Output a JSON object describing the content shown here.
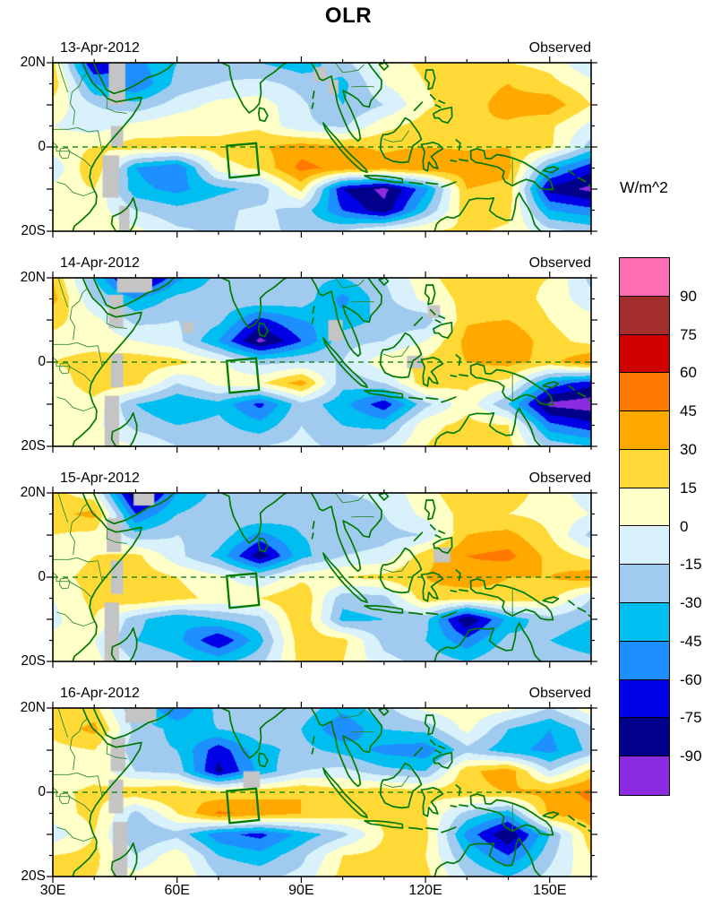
{
  "title": "OLR",
  "units_label": "W/m^2",
  "y_tick_labels": [
    "20N",
    "0",
    "20S"
  ],
  "x_tick_labels": [
    "30E",
    "60E",
    "90E",
    "120E",
    "150E"
  ],
  "colorbar": {
    "levels_top_to_bottom": [
      90,
      75,
      60,
      45,
      30,
      15,
      0,
      -15,
      -30,
      -45,
      -60,
      -75,
      -90
    ],
    "colors_top_to_bottom": [
      "#FF6EB4",
      "#A32C2C",
      "#D00000",
      "#FF7800",
      "#FFA800",
      "#FFD935",
      "#FFFFC8",
      "#D8F1FA",
      "#A0CBEF",
      "#00BEF0",
      "#1E8FFF",
      "#0000E6",
      "#00008B",
      "#8B2BE2"
    ]
  },
  "map_colors": {
    "coast_green": "#027A02",
    "border_green": "#2E8B2E",
    "missing_gray": "#C4C4C4",
    "box_green": "#017A01"
  },
  "chart_data": {
    "type": "heatmap",
    "title": "OLR",
    "units": "W/m^2",
    "x_range": [
      30,
      160
    ],
    "y_range": [
      -20,
      20
    ],
    "contour_interval": 15,
    "thresholds": [
      -90,
      -75,
      -60,
      -45,
      -30,
      -15,
      0,
      15,
      30,
      45,
      60,
      75,
      90
    ],
    "palette_low_to_high": [
      "#8B2BE2",
      "#00008B",
      "#0000E6",
      "#1E8FFF",
      "#00BEF0",
      "#A0CBEF",
      "#D8F1FA",
      "#FFFFC8",
      "#FFD935",
      "#FFA800",
      "#FF7800",
      "#D00000",
      "#A32C2C",
      "#FF6EB4"
    ],
    "lon_points": [
      30,
      40,
      50,
      60,
      70,
      80,
      90,
      100,
      110,
      120,
      130,
      140,
      150,
      160
    ],
    "lat_points": [
      20,
      15,
      10,
      5,
      0,
      -5,
      -10,
      -15,
      -20
    ],
    "box_lonlat": [
      [
        72.0,
        0.3
      ],
      [
        79.1,
        0.9
      ],
      [
        79.8,
        -6.6
      ],
      [
        72.7,
        -7.3
      ]
    ],
    "panels": [
      {
        "date": "13-Apr-2012",
        "source": "Observed",
        "grid": [
          [
            20,
            -80,
            -50,
            -30,
            -20,
            -30,
            -40,
            -20,
            5,
            20,
            20,
            15,
            10,
            -15
          ],
          [
            25,
            -45,
            -60,
            -25,
            -15,
            -10,
            -20,
            -35,
            0,
            15,
            25,
            30,
            20,
            5
          ],
          [
            10,
            -15,
            -25,
            -8,
            5,
            8,
            -12,
            -30,
            -15,
            12,
            25,
            35,
            40,
            15
          ],
          [
            0,
            -8,
            5,
            12,
            10,
            12,
            -12,
            -18,
            10,
            22,
            30,
            28,
            18,
            -5
          ],
          [
            8,
            15,
            22,
            18,
            20,
            28,
            38,
            32,
            28,
            30,
            28,
            30,
            18,
            -22
          ],
          [
            -12,
            30,
            -45,
            -60,
            8,
            18,
            50,
            40,
            35,
            42,
            40,
            35,
            -40,
            -70
          ],
          [
            5,
            15,
            -40,
            -50,
            -35,
            -25,
            20,
            -75,
            -95,
            -50,
            30,
            25,
            -80,
            -95
          ],
          [
            10,
            8,
            -15,
            -25,
            -18,
            -12,
            -20,
            -60,
            -85,
            -30,
            25,
            20,
            -45,
            -55
          ],
          [
            10,
            8,
            5,
            -12,
            -18,
            -10,
            -20,
            -15,
            5,
            15,
            18,
            12,
            -10,
            -20
          ]
        ],
        "missing": [
          [
            43.5,
            20,
            47.5,
            10
          ],
          [
            44,
            5,
            47,
            0
          ],
          [
            42,
            -2,
            46,
            -12
          ],
          [
            46,
            -14,
            48.5,
            -20
          ],
          [
            93,
            19,
            96,
            15.5
          ],
          [
            96.5,
            16,
            99,
            12.5
          ]
        ]
      },
      {
        "date": "14-Apr-2012",
        "source": "Observed",
        "grid": [
          [
            30,
            -30,
            -95,
            -50,
            -25,
            -20,
            -25,
            -30,
            -15,
            10,
            25,
            20,
            15,
            -20
          ],
          [
            35,
            -15,
            -45,
            -25,
            -20,
            -15,
            -20,
            -50,
            -20,
            5,
            20,
            25,
            10,
            -10
          ],
          [
            20,
            5,
            -20,
            -15,
            -25,
            -65,
            -45,
            -40,
            -25,
            -25,
            28,
            30,
            15,
            5
          ],
          [
            10,
            10,
            0,
            -10,
            -45,
            -95,
            -60,
            -20,
            -15,
            0,
            35,
            45,
            20,
            10
          ],
          [
            15,
            20,
            25,
            20,
            5,
            -20,
            -15,
            -15,
            10,
            20,
            30,
            35,
            25,
            45
          ],
          [
            5,
            25,
            20,
            -15,
            5,
            12,
            38,
            -25,
            -15,
            25,
            18,
            10,
            -50,
            -70
          ],
          [
            0,
            10,
            -30,
            -45,
            -35,
            -65,
            -20,
            -40,
            -70,
            -20,
            10,
            -30,
            -95,
            -100
          ],
          [
            10,
            5,
            -20,
            -30,
            -25,
            -40,
            -15,
            -30,
            -35,
            10,
            20,
            15,
            -55,
            -70
          ],
          [
            15,
            10,
            0,
            -15,
            -20,
            -15,
            -10,
            -20,
            -10,
            15,
            25,
            20,
            -20,
            -30
          ]
        ],
        "missing": [
          [
            45.5,
            20,
            54,
            16.5
          ],
          [
            43.5,
            16,
            47,
            8
          ],
          [
            44,
            2,
            47,
            -6
          ],
          [
            42.5,
            -8,
            46,
            -20
          ],
          [
            61.5,
            9.5,
            64,
            7
          ],
          [
            96.5,
            10,
            100,
            5
          ],
          [
            120.5,
            13.5,
            123.5,
            10.5
          ],
          [
            115.5,
            1.5,
            119.5,
            -1.5
          ]
        ]
      },
      {
        "date": "15-Apr-2012",
        "source": "Observed",
        "grid": [
          [
            20,
            5,
            -95,
            -45,
            -25,
            -25,
            -20,
            -15,
            -10,
            10,
            25,
            20,
            10,
            -10
          ],
          [
            25,
            35,
            -60,
            -30,
            -20,
            -15,
            -25,
            -30,
            -15,
            5,
            20,
            15,
            10,
            0
          ],
          [
            15,
            10,
            -25,
            -15,
            -20,
            -50,
            -30,
            -25,
            -20,
            -15,
            30,
            35,
            15,
            -20
          ],
          [
            5,
            15,
            20,
            -10,
            -35,
            -85,
            -35,
            -15,
            -10,
            25,
            45,
            50,
            25,
            10
          ],
          [
            10,
            20,
            25,
            15,
            5,
            -15,
            10,
            15,
            20,
            30,
            40,
            30,
            30,
            40
          ],
          [
            0,
            20,
            30,
            20,
            10,
            15,
            30,
            -25,
            -20,
            25,
            20,
            25,
            20,
            -15
          ],
          [
            -5,
            15,
            -25,
            -45,
            -30,
            -20,
            30,
            -35,
            -30,
            -25,
            -90,
            -40,
            -20,
            -30
          ],
          [
            5,
            0,
            -30,
            -40,
            -75,
            -35,
            25,
            20,
            -20,
            -30,
            -55,
            -25,
            -30,
            -40
          ],
          [
            10,
            5,
            -15,
            -25,
            -35,
            -20,
            20,
            15,
            -10,
            -20,
            -30,
            -15,
            -20,
            -25
          ]
        ],
        "missing": [
          [
            49.5,
            20,
            54.5,
            17
          ],
          [
            43,
            14,
            46.5,
            6
          ],
          [
            44,
            4,
            47,
            -4
          ],
          [
            42.5,
            -6,
            46,
            -20
          ],
          [
            122,
            7,
            126,
            3.5
          ]
        ]
      },
      {
        "date": "16-Apr-2012",
        "source": "Observed",
        "grid": [
          [
            15,
            20,
            -30,
            -60,
            -25,
            -15,
            -20,
            -40,
            -20,
            5,
            10,
            5,
            -15,
            10
          ],
          [
            20,
            35,
            -20,
            -35,
            -30,
            -20,
            -30,
            -60,
            -30,
            -25,
            5,
            -30,
            -45,
            -20
          ],
          [
            10,
            15,
            -25,
            -30,
            -70,
            -35,
            -25,
            -35,
            -50,
            -55,
            -20,
            -40,
            -50,
            -25
          ],
          [
            5,
            10,
            -15,
            -20,
            -80,
            -40,
            -15,
            -10,
            -25,
            -30,
            25,
            40,
            -15,
            20
          ],
          [
            12,
            18,
            25,
            30,
            20,
            25,
            30,
            20,
            25,
            20,
            25,
            30,
            35,
            50
          ],
          [
            8,
            20,
            -20,
            15,
            48,
            40,
            30,
            25,
            20,
            15,
            -20,
            -40,
            35,
            40
          ],
          [
            -10,
            15,
            -30,
            -20,
            -55,
            -65,
            -40,
            -20,
            15,
            20,
            -50,
            -90,
            -30,
            25
          ],
          [
            15,
            20,
            -15,
            10,
            -30,
            -40,
            -20,
            15,
            20,
            15,
            -30,
            -60,
            -20,
            15
          ],
          [
            20,
            15,
            5,
            15,
            -15,
            -20,
            -10,
            20,
            25,
            20,
            -15,
            -30,
            -10,
            10
          ]
        ],
        "missing": [
          [
            47.5,
            20,
            55,
            16.5
          ],
          [
            44,
            13,
            47.5,
            5
          ],
          [
            43.5,
            3,
            47,
            -5
          ],
          [
            44.5,
            -7,
            48,
            -20
          ],
          [
            76,
            5,
            80,
            1
          ]
        ]
      }
    ]
  }
}
